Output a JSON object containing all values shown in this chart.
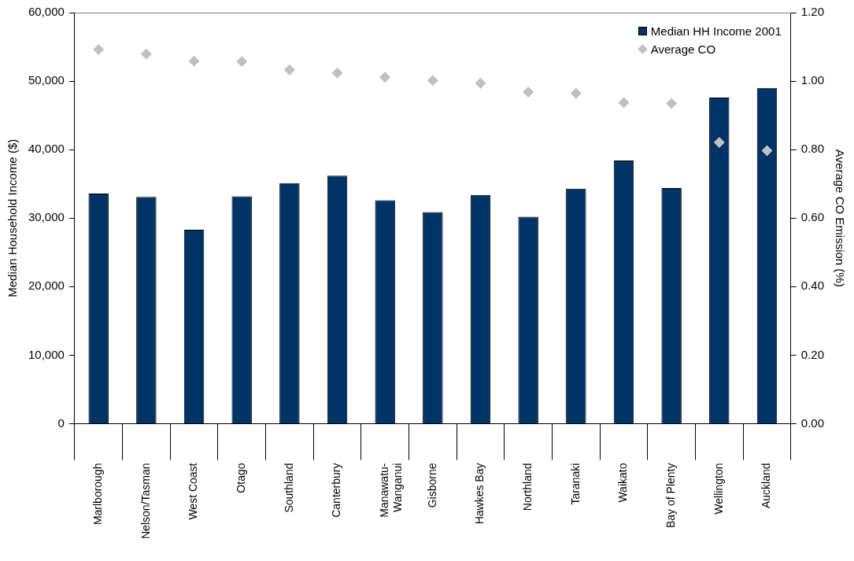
{
  "chart_data": {
    "type": "bar",
    "xlabel": null,
    "ylabel": "Median Household Income ($)",
    "y2label": "Average CO Emission (%)",
    "categories": [
      "Marlborough",
      "Nelson/Tasman",
      "West Coast",
      "Otago",
      "Southland",
      "Canterbury",
      "Manawatu-Wanganui",
      "Gisborne",
      "Hawkes Bay",
      "Northland",
      "Taranaki",
      "Waikato",
      "Bay of Plenty",
      "Wellington",
      "Auckland"
    ],
    "series": [
      {
        "name": "Median HH Income 2001",
        "color": "#003366",
        "values": [
          33600,
          33100,
          28300,
          33200,
          35100,
          36200,
          32600,
          30900,
          33400,
          30200,
          34300,
          38400,
          34400,
          47600,
          49000
        ]
      },
      {
        "name": "Average CO",
        "type": "scatter",
        "axis": "y2",
        "color": "#c0c0c0",
        "marker": "diamond",
        "values": [
          1.092,
          1.079,
          1.058,
          1.057,
          1.033,
          1.024,
          1.011,
          1.002,
          0.994,
          0.968,
          0.964,
          0.937,
          0.935,
          0.821,
          0.797
        ]
      }
    ],
    "ylim": [
      0,
      60000
    ],
    "yticks": [
      {
        "value": 0,
        "label": "0"
      },
      {
        "value": 10000,
        "label": "10,000"
      },
      {
        "value": 20000,
        "label": "20,000"
      },
      {
        "value": 30000,
        "label": "30,000"
      },
      {
        "value": 40000,
        "label": "40,000"
      },
      {
        "value": 50000,
        "label": "50,000"
      },
      {
        "value": 60000,
        "label": "60,000"
      }
    ],
    "y2lim": [
      0,
      1.2
    ],
    "y2ticks": [
      {
        "value": 0,
        "label": "0.00"
      },
      {
        "value": 0.2,
        "label": "0.20"
      },
      {
        "value": 0.4,
        "label": "0.40"
      },
      {
        "value": 0.6,
        "label": "0.60"
      },
      {
        "value": 0.8,
        "label": "0.80"
      },
      {
        "value": 1.0,
        "label": "1.00"
      },
      {
        "value": 1.2,
        "label": "1.20"
      }
    ],
    "grid": false,
    "legend": "top right"
  }
}
